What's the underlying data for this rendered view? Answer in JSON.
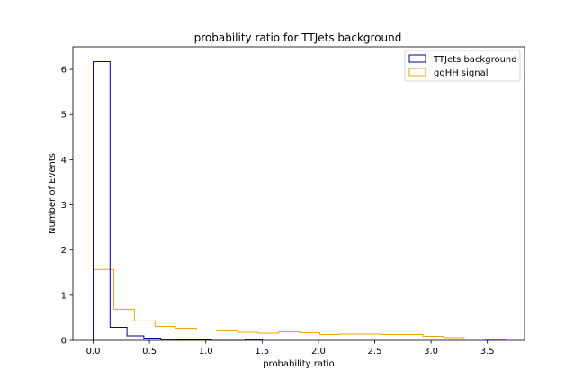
{
  "chart_data": {
    "type": "step-histogram",
    "title": "probability ratio for TTJets background",
    "xlabel": "probability ratio",
    "ylabel": "Number of Events",
    "xlim": [
      -0.18,
      3.83
    ],
    "ylim": [
      0,
      6.5
    ],
    "xticks": [
      0.0,
      0.5,
      1.0,
      1.5,
      2.0,
      2.5,
      3.0,
      3.5
    ],
    "xtick_labels": [
      "0.0",
      "0.5",
      "1.0",
      "1.5",
      "2.0",
      "2.5",
      "3.0",
      "3.5"
    ],
    "yticks": [
      0,
      1,
      2,
      3,
      4,
      5,
      6
    ],
    "ytick_labels": [
      "0",
      "1",
      "2",
      "3",
      "4",
      "5",
      "6"
    ],
    "grid": false,
    "legend": {
      "position": "top-right"
    },
    "series": [
      {
        "name": "TTJets background",
        "color": "#0000a0",
        "bin_edges": [
          0.0,
          0.15,
          0.3,
          0.45,
          0.6,
          0.75,
          0.9,
          1.05,
          1.2,
          1.35,
          1.5
        ],
        "values": [
          6.17,
          0.29,
          0.1,
          0.05,
          0.02,
          0.01,
          0.01,
          0.0,
          0.0,
          0.02
        ]
      },
      {
        "name": "ggHH signal",
        "color": "#f0a30a",
        "bin_edges": [
          0.0,
          0.183,
          0.366,
          0.549,
          0.732,
          0.915,
          1.098,
          1.281,
          1.464,
          1.647,
          1.83,
          2.013,
          2.196,
          2.379,
          2.562,
          2.745,
          2.928,
          3.111,
          3.294,
          3.477,
          3.66
        ],
        "values": [
          1.57,
          0.69,
          0.43,
          0.31,
          0.27,
          0.23,
          0.21,
          0.18,
          0.16,
          0.19,
          0.17,
          0.13,
          0.14,
          0.14,
          0.13,
          0.13,
          0.09,
          0.06,
          0.03,
          0.01
        ]
      }
    ]
  }
}
